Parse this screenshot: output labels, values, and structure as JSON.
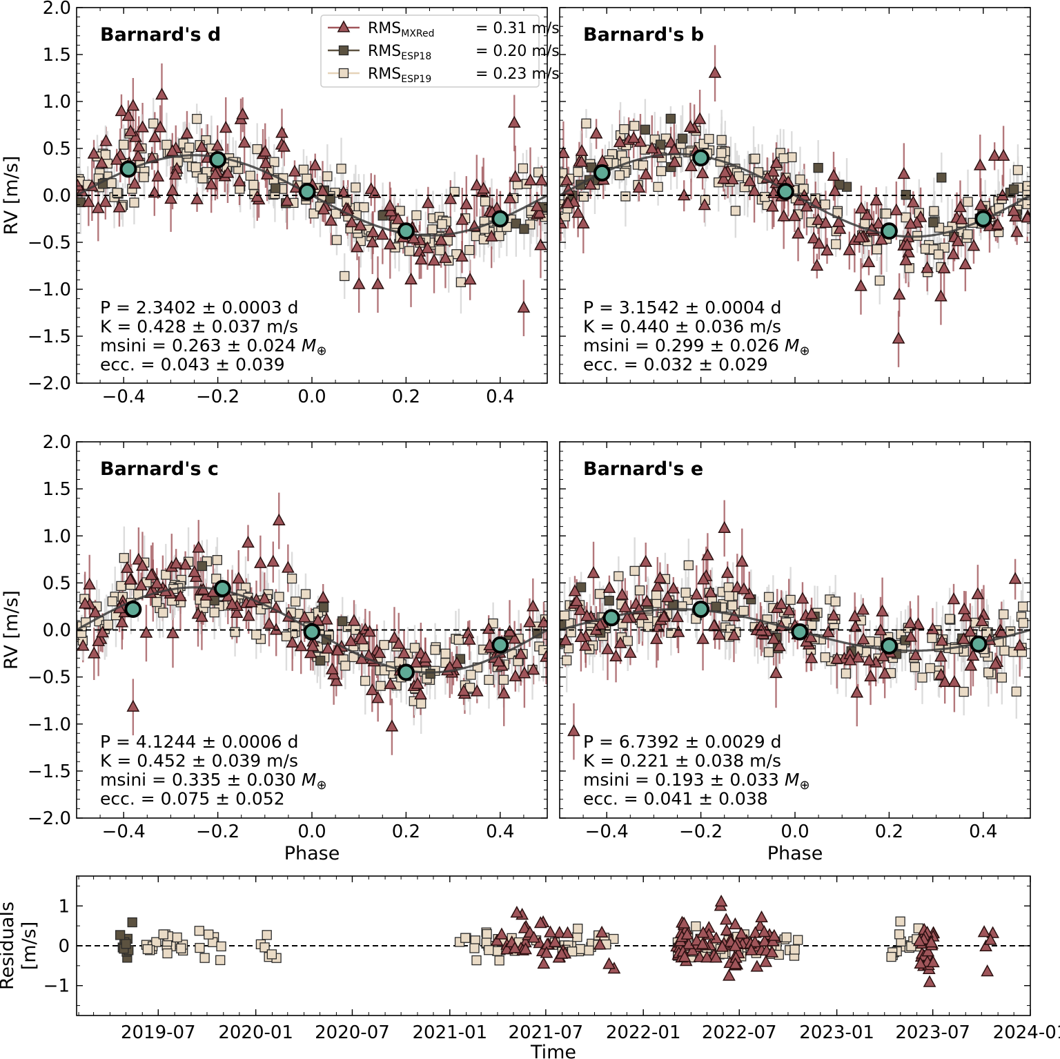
{
  "colors": {
    "mxred": "#a0555a",
    "mxred_edge": "#2a1010",
    "esp18": "#5c5240",
    "esp19": "#eadbc6",
    "err_grey": "#d8d8d8",
    "model": "#3a3a3a",
    "binned": "#5faa96"
  },
  "legend": {
    "entries": [
      {
        "marker": "triangle",
        "pre": "RMS",
        "sub": "MXRed",
        "post": "= 0.31 m/s"
      },
      {
        "marker": "square-dark",
        "pre": "RMS",
        "sub": "ESP18",
        "post": "= 0.20 m/s"
      },
      {
        "marker": "square-light",
        "pre": "RMS",
        "sub": "ESP19",
        "post": "= 0.23 m/s"
      }
    ]
  },
  "chart_data": [
    {
      "type": "scatter",
      "panel": "top-left",
      "title": "Barnard's d",
      "xlabel": "",
      "ylabel": "RV [m/s]",
      "xlim": [
        -0.5,
        0.5
      ],
      "ylim": [
        -2.0,
        2.0
      ],
      "xticks": [
        "-0.4",
        "-0.2",
        "0.0",
        "0.2",
        "0.4"
      ],
      "yticks": [
        "-2.0",
        "-1.5",
        "-1.0",
        "-0.5",
        "0.0",
        "0.5",
        "1.0",
        "1.5",
        "2.0"
      ],
      "model": {
        "K": 0.428,
        "peak_phase": -0.25
      },
      "binned": [
        {
          "x": -0.39,
          "y": 0.28
        },
        {
          "x": -0.2,
          "y": 0.38
        },
        {
          "x": -0.01,
          "y": 0.04
        },
        {
          "x": 0.2,
          "y": -0.38
        },
        {
          "x": 0.4,
          "y": -0.25
        }
      ],
      "outliers": [
        {
          "x": -0.38,
          "y": 0.95
        },
        {
          "x": 0.43,
          "y": 0.77
        },
        {
          "x": 0.45,
          "y": -1.2
        },
        {
          "x": 0.1,
          "y": -0.95
        },
        {
          "x": 0.14,
          "y": -0.95
        }
      ],
      "params": [
        "P = 2.3402 ± 0.0003 d",
        "K = 0.428 ± 0.037 m/s",
        "msini = 0.263 ± 0.024 M⊕",
        "ecc. = 0.043 ± 0.039"
      ],
      "seed": 11
    },
    {
      "type": "scatter",
      "panel": "top-right",
      "title": "Barnard's b",
      "xlabel": "",
      "ylabel": "",
      "xlim": [
        -0.5,
        0.5
      ],
      "ylim": [
        -2.0,
        2.0
      ],
      "xticks": [],
      "yticks": [],
      "model": {
        "K": 0.44,
        "peak_phase": -0.25
      },
      "binned": [
        {
          "x": -0.41,
          "y": 0.24
        },
        {
          "x": -0.2,
          "y": 0.4
        },
        {
          "x": -0.02,
          "y": 0.04
        },
        {
          "x": 0.2,
          "y": -0.38
        },
        {
          "x": 0.4,
          "y": -0.25
        }
      ],
      "outliers": [
        {
          "x": -0.17,
          "y": 1.3
        },
        {
          "x": 0.22,
          "y": -1.53
        },
        {
          "x": 0.31,
          "y": -1.08
        },
        {
          "x": 0.14,
          "y": -0.97
        }
      ],
      "params": [
        "P = 3.1542 ± 0.0004 d",
        "K = 0.440 ± 0.036 m/s",
        "msini = 0.299 ± 0.026 M⊕",
        "ecc. = 0.032 ± 0.029"
      ],
      "seed": 23
    },
    {
      "type": "scatter",
      "panel": "middle-left",
      "title": "Barnard's c",
      "xlabel": "Phase",
      "ylabel": "RV [m/s]",
      "xlim": [
        -0.5,
        0.5
      ],
      "ylim": [
        -2.0,
        2.0
      ],
      "xticks": [
        "-0.4",
        "-0.2",
        "0.0",
        "0.2",
        "0.4"
      ],
      "yticks": [
        "-2.0",
        "-1.5",
        "-1.0",
        "-0.5",
        "0.0",
        "0.5",
        "1.0",
        "1.5",
        "2.0"
      ],
      "model": {
        "K": 0.452,
        "peak_phase": -0.25
      },
      "binned": [
        {
          "x": -0.38,
          "y": 0.22
        },
        {
          "x": -0.19,
          "y": 0.44
        },
        {
          "x": 0.0,
          "y": -0.02
        },
        {
          "x": 0.2,
          "y": -0.45
        },
        {
          "x": 0.4,
          "y": -0.16
        }
      ],
      "outliers": [
        {
          "x": -0.07,
          "y": 1.16
        },
        {
          "x": -0.38,
          "y": -0.82
        },
        {
          "x": 0.17,
          "y": -1.03
        }
      ],
      "params": [
        "P = 4.1244 ± 0.0006 d",
        "K = 0.452 ± 0.039 m/s",
        "msini = 0.335 ± 0.030 M⊕",
        "ecc. = 0.075 ± 0.052"
      ],
      "seed": 37
    },
    {
      "type": "scatter",
      "panel": "middle-right",
      "title": "Barnard's e",
      "xlabel": "Phase",
      "ylabel": "",
      "xlim": [
        -0.5,
        0.5
      ],
      "ylim": [
        -2.0,
        2.0
      ],
      "xticks": [
        "-0.4",
        "-0.2",
        "0.0",
        "0.2",
        "0.4"
      ],
      "yticks": [],
      "model": {
        "K": 0.221,
        "peak_phase": -0.25
      },
      "binned": [
        {
          "x": -0.39,
          "y": 0.13
        },
        {
          "x": -0.2,
          "y": 0.22
        },
        {
          "x": 0.01,
          "y": -0.02
        },
        {
          "x": 0.2,
          "y": -0.17
        },
        {
          "x": 0.39,
          "y": -0.15
        }
      ],
      "outliers": [
        {
          "x": -0.15,
          "y": 1.08
        },
        {
          "x": -0.47,
          "y": -1.08
        }
      ],
      "params": [
        "P = 6.7392 ± 0.0029 d",
        "K = 0.221 ± 0.038 m/s",
        "msini = 0.193 ± 0.033 M⊕",
        "ecc. = 0.041 ± 0.038"
      ],
      "seed": 53
    },
    {
      "type": "scatter",
      "panel": "bottom",
      "title": "",
      "xlabel": "Time",
      "ylabel": "Residuals [m/s]",
      "ylabel_lines": [
        "Residuals",
        "[m/s]"
      ],
      "xlim": [
        "2019-01-28",
        "2024-01-01"
      ],
      "ylim": [
        -1.75,
        1.75
      ],
      "xticks": [
        "2019-07",
        "2020-01",
        "2020-07",
        "2021-01",
        "2021-07",
        "2022-01",
        "2022-07",
        "2023-01",
        "2023-07",
        "2024-01"
      ],
      "yticks": [
        "-1",
        "0",
        "1"
      ],
      "groups": [
        {
          "inst": "esp18",
          "start": "2019-04-20",
          "end": "2019-05-15",
          "n": 10
        },
        {
          "inst": "esp19",
          "start": "2019-05-25",
          "end": "2019-11-05",
          "n": 28
        },
        {
          "inst": "esp19",
          "start": "2020-01-10",
          "end": "2020-02-28",
          "n": 6
        },
        {
          "inst": "esp19",
          "start": "2021-01-15",
          "end": "2021-09-10",
          "n": 40
        },
        {
          "inst": "mxred",
          "start": "2021-03-20",
          "end": "2021-08-15",
          "n": 34
        },
        {
          "inst": "esp19",
          "start": "2021-09-20",
          "end": "2021-11-10",
          "n": 8
        },
        {
          "inst": "mxred",
          "start": "2021-10-10",
          "end": "2021-11-10",
          "n": 4
        },
        {
          "inst": "mxred",
          "start": "2022-03-01",
          "end": "2022-05-20",
          "n": 36
        },
        {
          "inst": "esp19",
          "start": "2022-03-05",
          "end": "2022-10-20",
          "n": 55
        },
        {
          "inst": "mxred",
          "start": "2022-05-25",
          "end": "2022-09-10",
          "n": 42
        },
        {
          "inst": "esp19",
          "start": "2023-04-10",
          "end": "2023-06-10",
          "n": 16
        },
        {
          "inst": "mxred",
          "start": "2023-06-05",
          "end": "2023-07-05",
          "n": 28
        },
        {
          "inst": "mxred",
          "start": "2023-10-01",
          "end": "2023-10-25",
          "n": 5
        }
      ],
      "outliers": [
        {
          "x": "2022-05-28",
          "y": 1.1
        },
        {
          "x": "2023-06-25",
          "y": -0.92
        }
      ]
    }
  ]
}
